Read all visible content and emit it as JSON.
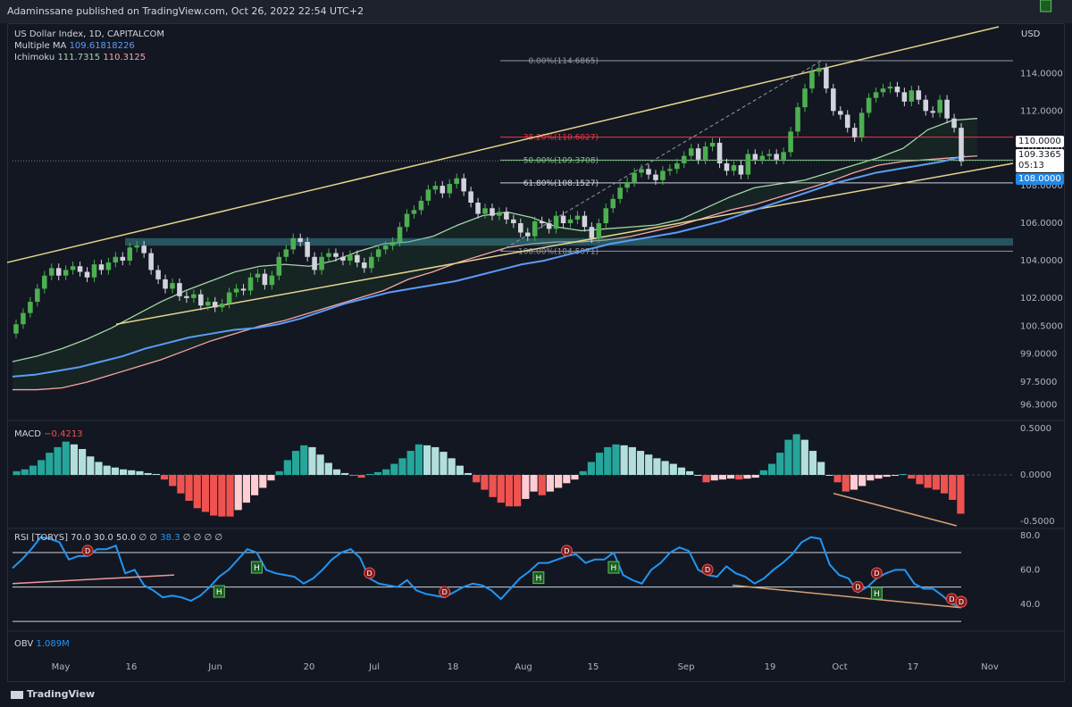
{
  "header": {
    "publisher": "Adaminssane published on TradingView.com, Oct 26, 2022 22:54 UTC+2"
  },
  "legend": {
    "symbol": "US Dollar Index, 1D, CAPITALCOM",
    "ma_label": "Multiple MA",
    "ma_value": "109.61818226",
    "ichimoku_label": "Ichimoku",
    "ichimoku_v1": "111.7315",
    "ichimoku_v2": "110.3125",
    "macd_label": "MACD",
    "macd_value": "−0.4213",
    "rsi_label": "RSI [TORYS]",
    "rsi_params": "70.0  30.0  50.0  ∅  ∅",
    "rsi_value": "38.3",
    "rsi_tail": "∅  ∅  ∅  ∅",
    "obv_label": "OBV",
    "obv_value": "1.089M"
  },
  "axis": {
    "currency": "USD"
  },
  "price_tags": {
    "upper": "110.0000",
    "last": "109.3365",
    "countdown": "05:13",
    "lower": "108.0000"
  },
  "fib_labels": {
    "f0": "0.00%(114.6865)",
    "f382": "38.20%(110.6027)",
    "f50": "50.00%(109.3708)",
    "f618": "61.80%(108.1527)",
    "f100": "100.00%(104.5071)"
  },
  "footer": {
    "brand": "TradingView"
  },
  "colors": {
    "bg": "#131722",
    "up": "#26a69a",
    "down": "#ef5350",
    "macd_light_up": "#b2dfdb",
    "macd_light_down": "#ffcdd2",
    "trend": "#e6d58c",
    "ma": "#5b9cf6",
    "ichi_a": "#a5d6a7",
    "ichi_b": "#f7a6a6",
    "rsi": "#2196f3"
  },
  "chart_data": [
    {
      "type": "candlestick",
      "title": "US Dollar Index, 1D, CAPITALCOM",
      "x_ticks": [
        "May",
        "16",
        "Jun",
        "20",
        "Jul",
        "18",
        "Aug",
        "15",
        "Sep",
        "19",
        "Oct",
        "17",
        "Nov"
      ],
      "y_ticks": [
        114.0,
        112.0,
        110.0,
        108.0,
        106.0,
        104.0,
        102.0,
        100.5,
        99.0,
        97.5,
        96.3
      ],
      "ylim": [
        95.6,
        116.5
      ],
      "close": [
        100.6,
        101.2,
        101.8,
        102.5,
        103.2,
        103.6,
        103.2,
        103.5,
        103.7,
        103.4,
        103.1,
        103.8,
        103.5,
        103.9,
        104.2,
        104.0,
        104.7,
        104.8,
        104.4,
        103.5,
        103.0,
        102.5,
        102.8,
        102.1,
        102.0,
        102.2,
        101.6,
        101.8,
        101.5,
        101.7,
        102.3,
        102.5,
        102.4,
        103.1,
        103.3,
        102.7,
        103.2,
        104.2,
        104.6,
        105.2,
        105.0,
        104.2,
        103.5,
        104.2,
        104.4,
        104.2,
        104.0,
        104.3,
        103.9,
        103.6,
        104.2,
        104.6,
        104.8,
        105.0,
        105.8,
        106.5,
        106.7,
        107.2,
        107.8,
        108.0,
        107.6,
        108.1,
        108.4,
        107.7,
        107.1,
        106.5,
        106.8,
        106.4,
        106.6,
        106.2,
        106.0,
        105.5,
        105.3,
        106.1,
        106.0,
        105.7,
        106.4,
        106.0,
        106.2,
        106.4,
        105.8,
        105.2,
        106.0,
        106.8,
        107.3,
        107.9,
        108.2,
        108.7,
        108.9,
        108.6,
        108.3,
        108.8,
        108.9,
        109.2,
        109.6,
        110.0,
        109.4,
        110.1,
        110.3,
        109.2,
        108.8,
        109.1,
        108.6,
        109.7,
        109.4,
        109.6,
        109.7,
        109.4,
        109.8,
        110.9,
        112.2,
        113.2,
        114.1,
        114.3,
        113.2,
        112.0,
        111.8,
        111.1,
        110.6,
        111.9,
        112.7,
        113.0,
        113.2,
        113.3,
        113.0,
        112.5,
        113.1,
        112.6,
        112.0,
        111.9,
        112.6,
        111.6,
        111.1,
        109.3
      ],
      "ma": [
        97.8,
        97.9,
        98.1,
        98.3,
        98.6,
        98.9,
        99.3,
        99.6,
        99.9,
        100.1,
        100.3,
        100.4,
        100.6,
        100.9,
        101.3,
        101.7,
        102.0,
        102.3,
        102.5,
        102.7,
        102.9,
        103.2,
        103.5,
        103.8,
        104.0,
        104.3,
        104.6,
        104.9,
        105.1,
        105.3,
        105.5,
        105.8,
        106.1,
        106.5,
        106.9,
        107.3,
        107.7,
        108.1,
        108.4,
        108.7,
        108.9,
        109.1,
        109.3,
        109.6
      ],
      "ichimoku_span_a": [
        98.6,
        98.9,
        99.3,
        99.8,
        100.4,
        101.1,
        101.8,
        102.4,
        102.9,
        103.4,
        103.7,
        103.8,
        103.7,
        104.0,
        104.5,
        104.9,
        105.0,
        105.3,
        105.9,
        106.4,
        106.6,
        106.3,
        105.8,
        105.6,
        105.7,
        105.8,
        105.9,
        106.2,
        106.8,
        107.4,
        107.9,
        108.1,
        108.3,
        108.7,
        109.1,
        109.5,
        110.0,
        111.0,
        111.5,
        111.6
      ],
      "ichimoku_span_b": [
        97.1,
        97.1,
        97.2,
        97.5,
        97.9,
        98.3,
        98.7,
        99.2,
        99.7,
        100.1,
        100.5,
        100.8,
        101.2,
        101.6,
        102.0,
        102.4,
        103.0,
        103.4,
        103.9,
        104.3,
        104.7,
        104.9,
        105.0,
        105.0,
        105.1,
        105.3,
        105.6,
        105.9,
        106.3,
        106.7,
        107.0,
        107.4,
        107.8,
        108.2,
        108.7,
        109.1,
        109.3,
        109.4,
        109.5,
        109.6
      ],
      "fibonacci": [
        {
          "level": "0.00%",
          "price": 114.6865
        },
        {
          "level": "38.20%",
          "price": 110.6027
        },
        {
          "level": "50.00%",
          "price": 109.3708
        },
        {
          "level": "61.80%",
          "price": 108.1527
        },
        {
          "level": "100.00%",
          "price": 104.5071
        }
      ],
      "last_price": 109.3365,
      "moving_average": 109.61818226
    },
    {
      "type": "bar",
      "title": "MACD",
      "y_ticks": [
        0.5,
        0.0,
        -0.5
      ],
      "ylim": [
        -0.56,
        0.56
      ],
      "last_value": -0.4213,
      "values": [
        0.04,
        0.06,
        0.1,
        0.16,
        0.24,
        0.3,
        0.36,
        0.33,
        0.28,
        0.2,
        0.14,
        0.1,
        0.08,
        0.06,
        0.05,
        0.04,
        0.02,
        0.01,
        -0.05,
        -0.12,
        -0.2,
        -0.28,
        -0.36,
        -0.4,
        -0.44,
        -0.45,
        -0.45,
        -0.38,
        -0.3,
        -0.22,
        -0.14,
        -0.06,
        0.04,
        0.16,
        0.26,
        0.32,
        0.3,
        0.22,
        0.13,
        0.06,
        0.02,
        -0.01,
        -0.03,
        0.01,
        0.03,
        0.06,
        0.12,
        0.18,
        0.26,
        0.33,
        0.32,
        0.3,
        0.25,
        0.18,
        0.1,
        0.02,
        -0.08,
        -0.16,
        -0.24,
        -0.3,
        -0.34,
        -0.34,
        -0.26,
        -0.18,
        -0.22,
        -0.18,
        -0.14,
        -0.09,
        -0.05,
        0.04,
        0.14,
        0.24,
        0.3,
        0.33,
        0.32,
        0.3,
        0.26,
        0.22,
        0.18,
        0.15,
        0.12,
        0.08,
        0.04,
        0.0,
        -0.08,
        -0.06,
        -0.05,
        -0.04,
        -0.05,
        -0.04,
        -0.03,
        0.05,
        0.12,
        0.24,
        0.38,
        0.44,
        0.38,
        0.26,
        0.14,
        0.0,
        -0.08,
        -0.18,
        -0.16,
        -0.12,
        -0.06,
        -0.04,
        -0.02,
        -0.01,
        0.01,
        -0.04,
        -0.1,
        -0.14,
        -0.16,
        -0.2,
        -0.27,
        -0.42
      ]
    },
    {
      "type": "line",
      "title": "RSI [TORYS]",
      "y_ticks": [
        80.0,
        60.0,
        40.0
      ],
      "ylim": [
        28,
        83
      ],
      "levels": [
        70.0,
        30.0,
        50.0
      ],
      "last_value": 38.3,
      "values": [
        61,
        66,
        72,
        79,
        78,
        76,
        66,
        68,
        68,
        72,
        72,
        74,
        58,
        60,
        51,
        48,
        44,
        45,
        44,
        42,
        45,
        50,
        56,
        60,
        66,
        72,
        70,
        60,
        58,
        57,
        56,
        52,
        55,
        60,
        66,
        70,
        72,
        67,
        55,
        52,
        51,
        50,
        54,
        48,
        46,
        45,
        44,
        47,
        50,
        52,
        51,
        48,
        43,
        49,
        55,
        59,
        64,
        64,
        66,
        68,
        69,
        64,
        66,
        66,
        70,
        57,
        54,
        52,
        60,
        64,
        70,
        73,
        71,
        60,
        57,
        56,
        62,
        58,
        56,
        52,
        55,
        60,
        64,
        69,
        76,
        79,
        78,
        63,
        57,
        55,
        47,
        50,
        55,
        58,
        60,
        60,
        52,
        49,
        49,
        45,
        40,
        38.3
      ],
      "h_markers": [
        [
          22,
          "H"
        ],
        [
          26,
          "H"
        ],
        [
          56,
          "H"
        ],
        [
          64,
          "H"
        ],
        [
          92,
          "H"
        ],
        [
          110,
          "H"
        ]
      ],
      "d_markers": [
        [
          8,
          "D"
        ],
        [
          38,
          "D"
        ],
        [
          46,
          "D"
        ],
        [
          59,
          "D"
        ],
        [
          74,
          "D"
        ],
        [
          90,
          "D"
        ],
        [
          92,
          "D"
        ],
        [
          100,
          "D"
        ],
        [
          106,
          "D"
        ],
        [
          110,
          "D"
        ],
        [
          122,
          "D"
        ]
      ]
    },
    {
      "type": "line",
      "title": "OBV",
      "last_value": "1.089M"
    }
  ]
}
